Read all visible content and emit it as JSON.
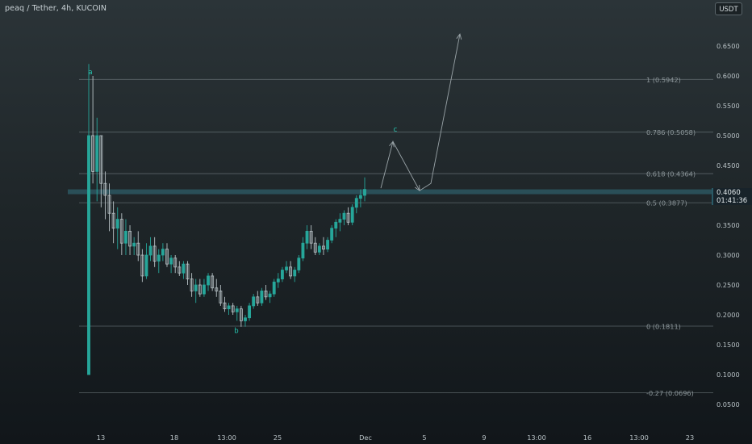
{
  "header": {
    "symbol_title": "peaq / Tether, 4h, KUCOIN",
    "currency_button": "USDT"
  },
  "price_tag": {
    "price": "0.4060",
    "countdown": "01:41:36"
  },
  "colors": {
    "bull": "#26a69a",
    "bear": "#b8c2c6",
    "wave_label": "#26c6b0",
    "fib_line": "#5a6468",
    "fib_label": "#8e989c",
    "price_line": "#2e5d68",
    "drawing": "#9aa4a8",
    "axis_text": "#b7c0c4"
  },
  "chart_data": {
    "type": "candlestick",
    "y_axis": {
      "range": [
        0.0,
        0.7
      ],
      "ticks": [
        "0.0500",
        "0.1000",
        "0.1500",
        "0.2000",
        "0.2500",
        "0.3000",
        "0.3500",
        "0.4000",
        "0.4500",
        "0.5000",
        "0.5500",
        "0.6000",
        "0.6500"
      ],
      "tick_values": [
        0.05,
        0.1,
        0.15,
        0.2,
        0.25,
        0.3,
        0.35,
        0.4,
        0.45,
        0.5,
        0.55,
        0.6,
        0.65
      ]
    },
    "x_axis": {
      "ticks": [
        "13",
        "18",
        "13:00",
        "25",
        "Dec",
        "5",
        "9",
        "13:00",
        "16",
        "13:00",
        "23"
      ]
    },
    "fib_levels": [
      {
        "ratio": "1",
        "label": "1 (0.5942)",
        "value": 0.5942
      },
      {
        "ratio": "0.786",
        "label": "0.786 (0.5058)",
        "value": 0.5058
      },
      {
        "ratio": "0.618",
        "label": "0.618 (0.4364)",
        "value": 0.4364
      },
      {
        "ratio": "0.5",
        "label": "0.5 (0.3877)",
        "value": 0.3877
      },
      {
        "ratio": "0",
        "label": "0 (0.1811)",
        "value": 0.1811
      },
      {
        "ratio": "-0.27",
        "label": "-0.27 (0.0696)",
        "value": 0.0696
      }
    ],
    "current_price": 0.406,
    "wave_labels": [
      {
        "text": "a",
        "value": 0.6025
      },
      {
        "text": "b",
        "value": 0.1695
      },
      {
        "text": "c",
        "value": 0.5065
      }
    ],
    "projection_path": [
      0.412,
      0.49,
      0.408,
      0.42,
      0.67
    ],
    "candles": [
      [
        0.1,
        0.62,
        0.1,
        0.5
      ],
      [
        0.5,
        0.6,
        0.42,
        0.44
      ],
      [
        0.44,
        0.53,
        0.39,
        0.5
      ],
      [
        0.5,
        0.5,
        0.38,
        0.42
      ],
      [
        0.42,
        0.44,
        0.36,
        0.4
      ],
      [
        0.4,
        0.42,
        0.34,
        0.37
      ],
      [
        0.37,
        0.39,
        0.32,
        0.345
      ],
      [
        0.345,
        0.38,
        0.31,
        0.36
      ],
      [
        0.36,
        0.37,
        0.3,
        0.32
      ],
      [
        0.32,
        0.36,
        0.3,
        0.34
      ],
      [
        0.34,
        0.35,
        0.3,
        0.315
      ],
      [
        0.315,
        0.33,
        0.3,
        0.32
      ],
      [
        0.32,
        0.34,
        0.29,
        0.3
      ],
      [
        0.3,
        0.31,
        0.255,
        0.265
      ],
      [
        0.265,
        0.32,
        0.26,
        0.3
      ],
      [
        0.3,
        0.33,
        0.29,
        0.315
      ],
      [
        0.315,
        0.33,
        0.28,
        0.29
      ],
      [
        0.29,
        0.31,
        0.27,
        0.3
      ],
      [
        0.3,
        0.32,
        0.29,
        0.31
      ],
      [
        0.31,
        0.32,
        0.28,
        0.285
      ],
      [
        0.285,
        0.3,
        0.27,
        0.295
      ],
      [
        0.295,
        0.3,
        0.27,
        0.28
      ],
      [
        0.28,
        0.29,
        0.265,
        0.27
      ],
      [
        0.27,
        0.29,
        0.26,
        0.285
      ],
      [
        0.285,
        0.29,
        0.25,
        0.26
      ],
      [
        0.26,
        0.27,
        0.23,
        0.24
      ],
      [
        0.24,
        0.26,
        0.22,
        0.25
      ],
      [
        0.25,
        0.26,
        0.23,
        0.235
      ],
      [
        0.235,
        0.26,
        0.23,
        0.25
      ],
      [
        0.25,
        0.27,
        0.24,
        0.265
      ],
      [
        0.265,
        0.27,
        0.24,
        0.245
      ],
      [
        0.245,
        0.26,
        0.23,
        0.24
      ],
      [
        0.24,
        0.25,
        0.215,
        0.22
      ],
      [
        0.22,
        0.23,
        0.205,
        0.21
      ],
      [
        0.21,
        0.22,
        0.2,
        0.215
      ],
      [
        0.215,
        0.22,
        0.2,
        0.205
      ],
      [
        0.205,
        0.215,
        0.19,
        0.21
      ],
      [
        0.21,
        0.215,
        0.18,
        0.19
      ],
      [
        0.19,
        0.2,
        0.18,
        0.195
      ],
      [
        0.195,
        0.22,
        0.19,
        0.215
      ],
      [
        0.215,
        0.235,
        0.21,
        0.23
      ],
      [
        0.23,
        0.24,
        0.215,
        0.22
      ],
      [
        0.22,
        0.245,
        0.215,
        0.24
      ],
      [
        0.24,
        0.25,
        0.225,
        0.23
      ],
      [
        0.23,
        0.24,
        0.22,
        0.235
      ],
      [
        0.235,
        0.26,
        0.23,
        0.255
      ],
      [
        0.255,
        0.27,
        0.245,
        0.26
      ],
      [
        0.26,
        0.28,
        0.255,
        0.275
      ],
      [
        0.275,
        0.29,
        0.27,
        0.28
      ],
      [
        0.28,
        0.29,
        0.26,
        0.265
      ],
      [
        0.265,
        0.28,
        0.255,
        0.275
      ],
      [
        0.275,
        0.3,
        0.27,
        0.295
      ],
      [
        0.295,
        0.33,
        0.29,
        0.32
      ],
      [
        0.32,
        0.35,
        0.31,
        0.34
      ],
      [
        0.34,
        0.35,
        0.31,
        0.32
      ],
      [
        0.32,
        0.33,
        0.3,
        0.305
      ],
      [
        0.305,
        0.32,
        0.3,
        0.315
      ],
      [
        0.315,
        0.33,
        0.3,
        0.31
      ],
      [
        0.31,
        0.33,
        0.305,
        0.325
      ],
      [
        0.325,
        0.35,
        0.32,
        0.345
      ],
      [
        0.345,
        0.36,
        0.33,
        0.355
      ],
      [
        0.355,
        0.37,
        0.34,
        0.36
      ],
      [
        0.36,
        0.375,
        0.35,
        0.37
      ],
      [
        0.37,
        0.38,
        0.35,
        0.355
      ],
      [
        0.355,
        0.385,
        0.35,
        0.38
      ],
      [
        0.38,
        0.4,
        0.37,
        0.395
      ],
      [
        0.395,
        0.41,
        0.38,
        0.4
      ],
      [
        0.4,
        0.43,
        0.39,
        0.41
      ]
    ]
  }
}
